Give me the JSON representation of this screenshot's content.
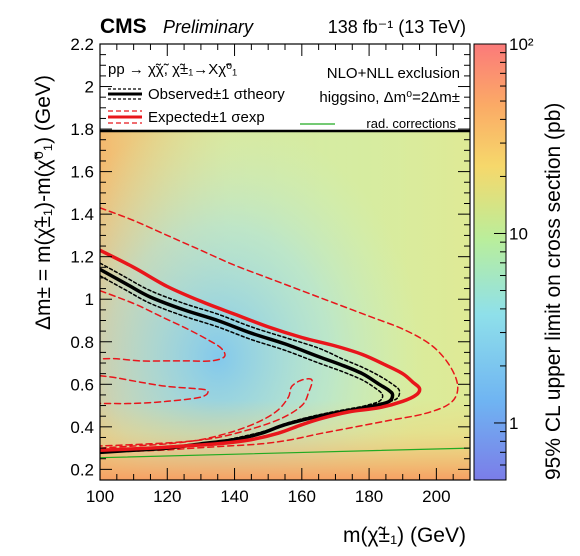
{
  "chart_data": {
    "type": "heatmap",
    "title": "",
    "header": {
      "experiment": "CMS",
      "status": "Preliminary",
      "luminosity": "138 fb⁻¹ (13 TeV)"
    },
    "xlabel": "m(χ̃±₁) (GeV)",
    "ylabel": "Δm± = m(χ̃±₁)-m(χ̃⁰₁) (GeV)",
    "zlabel": "95% CL upper limit on cross section (pb)",
    "xlim": [
      100,
      210
    ],
    "ylim": [
      0.15,
      2.2
    ],
    "zlim": [
      0.5,
      100
    ],
    "zscale": "log",
    "x_ticks": [
      "100",
      "120",
      "140",
      "160",
      "180",
      "200"
    ],
    "y_ticks": [
      "0.2",
      "0.4",
      "0.6",
      "0.8",
      "1",
      "1.2",
      "1.4",
      "1.6",
      "1.8",
      "2",
      "2.2"
    ],
    "z_ticks": [
      "1",
      "10",
      "10²"
    ],
    "legend": {
      "process": "pp → χ̃χ̃, χ̃±₁→Xχ̃⁰₁",
      "observed": "Observed±1 σtheory",
      "expected": "Expected±1 σexp",
      "model_line1": "NLO+NLL exclusion",
      "model_line2": "higgsino, Δm⁰=2Δm±",
      "rad_corrections": "rad. corrections"
    },
    "colors": {
      "observed": "#000000",
      "expected": "#e8161b",
      "rad_corrections": "#22aa22"
    },
    "series": [
      {
        "name": "Observed",
        "style": "solid",
        "points": [
          [
            100,
            1.14
          ],
          [
            108,
            1.07
          ],
          [
            115,
            1.01
          ],
          [
            125,
            0.95
          ],
          [
            135,
            0.9
          ],
          [
            145,
            0.84
          ],
          [
            155,
            0.79
          ],
          [
            165,
            0.73
          ],
          [
            172,
            0.69
          ],
          [
            178,
            0.65
          ],
          [
            183,
            0.6
          ],
          [
            186,
            0.57
          ],
          [
            187,
            0.55
          ],
          [
            186,
            0.52
          ],
          [
            182,
            0.5
          ],
          [
            175,
            0.48
          ],
          [
            165,
            0.45
          ],
          [
            155,
            0.41
          ],
          [
            148,
            0.37
          ],
          [
            140,
            0.34
          ],
          [
            130,
            0.32
          ],
          [
            120,
            0.3
          ],
          [
            110,
            0.29
          ],
          [
            100,
            0.28
          ]
        ]
      },
      {
        "name": "Observed +1 σtheory",
        "style": "dotted",
        "points": [
          [
            100,
            1.17
          ],
          [
            108,
            1.1
          ],
          [
            115,
            1.04
          ],
          [
            125,
            0.98
          ],
          [
            135,
            0.93
          ],
          [
            145,
            0.87
          ],
          [
            155,
            0.82
          ],
          [
            165,
            0.77
          ],
          [
            172,
            0.72
          ],
          [
            178,
            0.68
          ],
          [
            183,
            0.64
          ],
          [
            187,
            0.6
          ],
          [
            189,
            0.57
          ],
          [
            188,
            0.53
          ],
          [
            183,
            0.51
          ],
          [
            176,
            0.49
          ],
          [
            166,
            0.46
          ],
          [
            156,
            0.42
          ],
          [
            149,
            0.38
          ],
          [
            141,
            0.35
          ],
          [
            131,
            0.32
          ],
          [
            120,
            0.3
          ],
          [
            110,
            0.29
          ],
          [
            100,
            0.28
          ]
        ]
      },
      {
        "name": "Observed -1 σtheory",
        "style": "dotted",
        "points": [
          [
            100,
            1.11
          ],
          [
            108,
            1.04
          ],
          [
            115,
            0.98
          ],
          [
            125,
            0.92
          ],
          [
            135,
            0.87
          ],
          [
            145,
            0.81
          ],
          [
            155,
            0.76
          ],
          [
            165,
            0.7
          ],
          [
            172,
            0.66
          ],
          [
            178,
            0.62
          ],
          [
            182,
            0.58
          ],
          [
            184,
            0.55
          ],
          [
            183,
            0.52
          ],
          [
            179,
            0.5
          ],
          [
            172,
            0.47
          ],
          [
            163,
            0.44
          ],
          [
            153,
            0.4
          ],
          [
            146,
            0.36
          ],
          [
            138,
            0.33
          ],
          [
            128,
            0.31
          ],
          [
            118,
            0.3
          ],
          [
            110,
            0.29
          ],
          [
            100,
            0.29
          ]
        ]
      },
      {
        "name": "Expected",
        "style": "solid",
        "points": [
          [
            100,
            1.23
          ],
          [
            110,
            1.15
          ],
          [
            120,
            1.06
          ],
          [
            130,
            0.99
          ],
          [
            140,
            0.93
          ],
          [
            150,
            0.87
          ],
          [
            160,
            0.82
          ],
          [
            170,
            0.78
          ],
          [
            178,
            0.74
          ],
          [
            185,
            0.69
          ],
          [
            190,
            0.65
          ],
          [
            193,
            0.61
          ],
          [
            195,
            0.58
          ],
          [
            194,
            0.55
          ],
          [
            190,
            0.52
          ],
          [
            183,
            0.49
          ],
          [
            174,
            0.47
          ],
          [
            166,
            0.44
          ],
          [
            160,
            0.41
          ],
          [
            153,
            0.37
          ],
          [
            145,
            0.34
          ],
          [
            135,
            0.32
          ],
          [
            125,
            0.31
          ],
          [
            115,
            0.3
          ],
          [
            100,
            0.29
          ]
        ]
      },
      {
        "name": "Expected +1 σexp",
        "style": "dashed",
        "points": [
          [
            100,
            1.43
          ],
          [
            110,
            1.37
          ],
          [
            120,
            1.3
          ],
          [
            130,
            1.23
          ],
          [
            140,
            1.16
          ],
          [
            150,
            1.1
          ],
          [
            160,
            1.04
          ],
          [
            170,
            0.98
          ],
          [
            180,
            0.92
          ],
          [
            190,
            0.86
          ],
          [
            198,
            0.79
          ],
          [
            203,
            0.71
          ],
          [
            206,
            0.62
          ],
          [
            206,
            0.55
          ],
          [
            203,
            0.5
          ],
          [
            196,
            0.46
          ],
          [
            186,
            0.43
          ],
          [
            176,
            0.4
          ],
          [
            166,
            0.37
          ],
          [
            157,
            0.34
          ],
          [
            148,
            0.32
          ],
          [
            138,
            0.31
          ],
          [
            128,
            0.3
          ],
          [
            118,
            0.29
          ],
          [
            100,
            0.28
          ]
        ]
      },
      {
        "name": "Expected -1 σexp",
        "style": "dashed",
        "points": [
          [
            100,
            1.04
          ],
          [
            110,
            0.98
          ],
          [
            118,
            0.92
          ],
          [
            126,
            0.86
          ],
          [
            132,
            0.81
          ],
          [
            136,
            0.77
          ],
          [
            137,
            0.73
          ],
          [
            133,
            0.71
          ],
          [
            126,
            0.71
          ],
          [
            120,
            0.71
          ],
          [
            112,
            0.71
          ],
          [
            105,
            0.72
          ],
          [
            100,
            0.72
          ]
        ]
      },
      {
        "name": "Expected -1 σexp (inner)",
        "style": "dashed",
        "points": [
          [
            100,
            0.64
          ],
          [
            105,
            0.63
          ],
          [
            112,
            0.61
          ],
          [
            120,
            0.59
          ],
          [
            128,
            0.58
          ],
          [
            132,
            0.57
          ],
          [
            130,
            0.54
          ],
          [
            120,
            0.52
          ],
          [
            110,
            0.51
          ],
          [
            100,
            0.51
          ]
        ]
      },
      {
        "name": "Expected -1 σexp (lower)",
        "style": "dashed",
        "points": [
          [
            100,
            0.3
          ],
          [
            110,
            0.31
          ],
          [
            120,
            0.32
          ],
          [
            130,
            0.34
          ],
          [
            140,
            0.38
          ],
          [
            148,
            0.43
          ],
          [
            153,
            0.48
          ],
          [
            156,
            0.54
          ],
          [
            157,
            0.59
          ],
          [
            160,
            0.62
          ],
          [
            163,
            0.62
          ],
          [
            162,
            0.56
          ],
          [
            160,
            0.5
          ],
          [
            154,
            0.44
          ],
          [
            145,
            0.39
          ],
          [
            135,
            0.35
          ],
          [
            125,
            0.33
          ],
          [
            115,
            0.32
          ],
          [
            100,
            0.31
          ]
        ]
      },
      {
        "name": "rad. corrections",
        "style": "solid",
        "points": [
          [
            100,
            0.255
          ],
          [
            210,
            0.3
          ]
        ]
      }
    ]
  }
}
